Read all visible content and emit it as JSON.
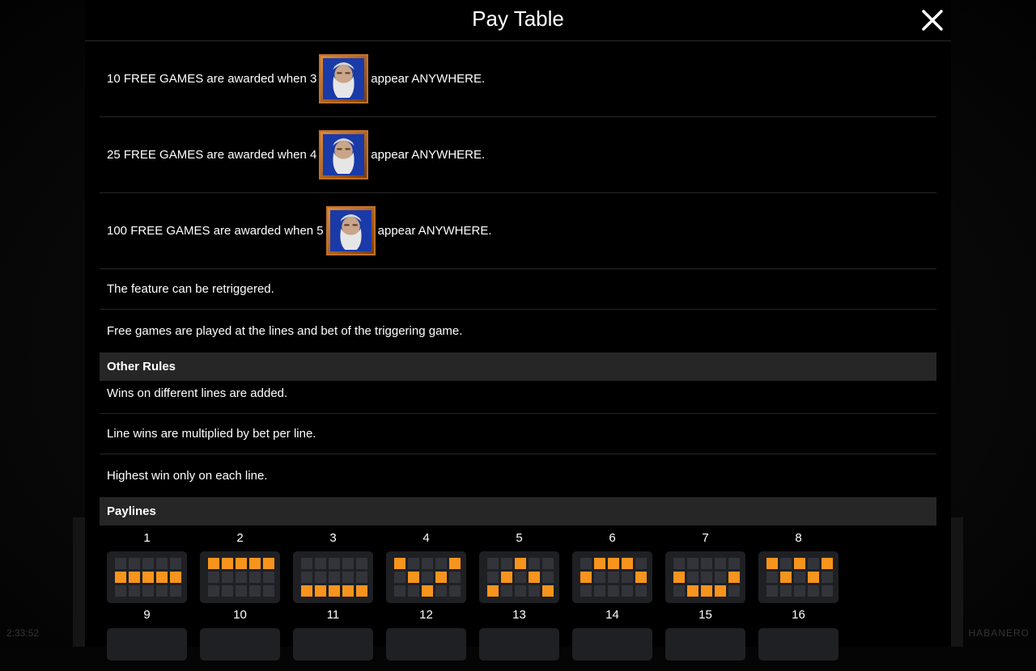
{
  "header": {
    "title": "Pay Table"
  },
  "free_games": [
    {
      "before": "10 FREE GAMES are awarded when 3",
      "after": "appear ANYWHERE."
    },
    {
      "before": "25 FREE GAMES are awarded when 4",
      "after": "appear ANYWHERE."
    },
    {
      "before": "100 FREE GAMES are awarded when 5",
      "after": "appear ANYWHERE."
    }
  ],
  "notes": [
    "The feature can be retriggered.",
    "Free games are played at the lines and bet of the triggering game."
  ],
  "other_rules": {
    "heading": "Other Rules",
    "items": [
      "Wins on different lines are added.",
      "Line wins are multiplied by bet per line.",
      "Highest win only on each line."
    ]
  },
  "paylines": {
    "heading": "Paylines",
    "lines": [
      {
        "num": "1",
        "rows": [
          1,
          1,
          1,
          1,
          1
        ]
      },
      {
        "num": "2",
        "rows": [
          0,
          0,
          0,
          0,
          0
        ]
      },
      {
        "num": "3",
        "rows": [
          2,
          2,
          2,
          2,
          2
        ]
      },
      {
        "num": "4",
        "rows": [
          0,
          1,
          2,
          1,
          0
        ]
      },
      {
        "num": "5",
        "rows": [
          2,
          1,
          0,
          1,
          2
        ]
      },
      {
        "num": "6",
        "rows": [
          1,
          0,
          0,
          0,
          1
        ]
      },
      {
        "num": "7",
        "rows": [
          1,
          2,
          2,
          2,
          1
        ]
      },
      {
        "num": "8",
        "rows": [
          0,
          1,
          0,
          1,
          0
        ]
      }
    ],
    "next_row_nums": [
      "9",
      "10",
      "11",
      "12",
      "13",
      "14",
      "15",
      "16"
    ]
  },
  "footer": {
    "left": "2:33:52",
    "right": "HABANERO"
  },
  "colors": {
    "accent": "#f7941d",
    "cell_off": "#33343a",
    "section_bg": "#262626"
  },
  "icons": {
    "close": "close-icon",
    "symbol": "zeus-scatter-icon"
  }
}
